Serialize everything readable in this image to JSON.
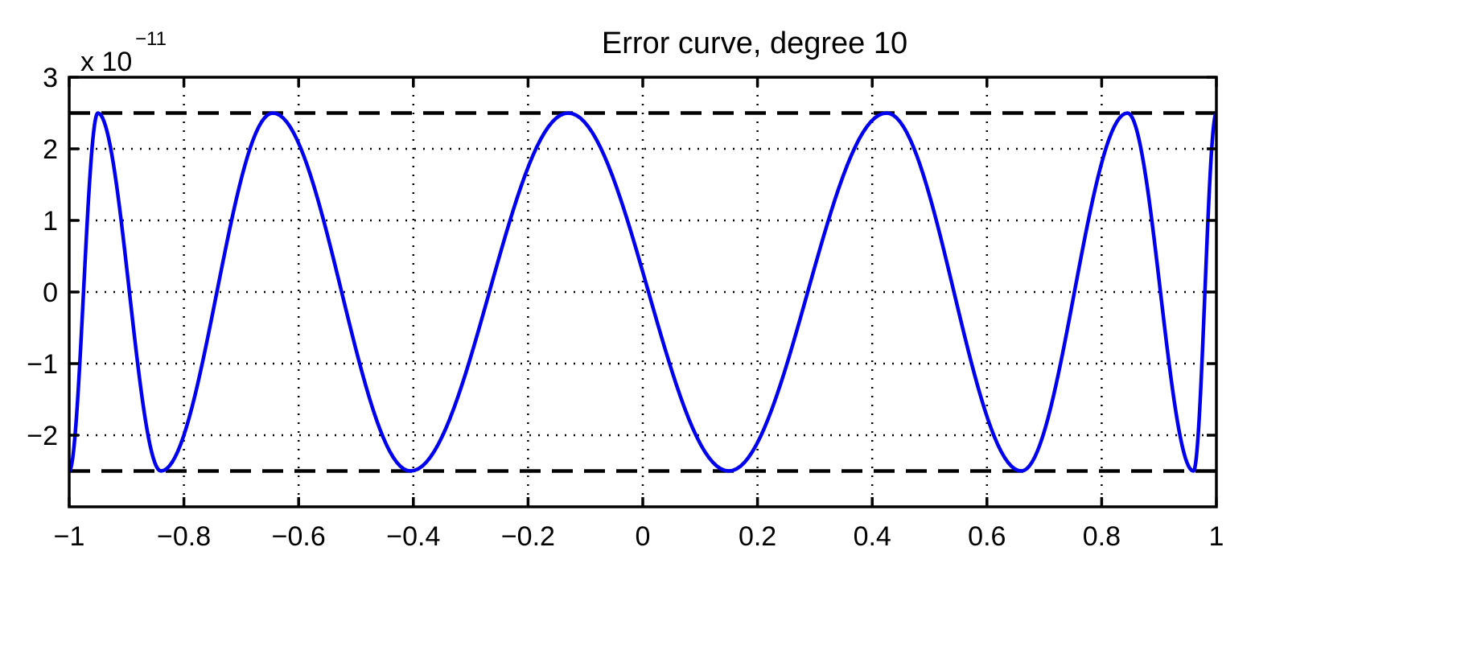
{
  "chart_data": {
    "type": "line",
    "title": "Error curve, degree 10",
    "xlabel": "",
    "ylabel": "",
    "y_multiplier": {
      "base": "x 10",
      "exponent": "−11"
    },
    "xlim": [
      -1,
      1
    ],
    "ylim": [
      -3,
      3
    ],
    "grid": true,
    "x_ticks": [
      -1,
      -0.8,
      -0.6,
      -0.4,
      -0.2,
      0,
      0.2,
      0.4,
      0.6,
      0.8,
      1
    ],
    "x_tick_labels": [
      "−1",
      "−0.8",
      "−0.6",
      "−0.4",
      "−0.2",
      "0",
      "0.2",
      "0.4",
      "0.6",
      "0.8",
      "1"
    ],
    "y_ticks": [
      -2,
      -1,
      0,
      1,
      2,
      3
    ],
    "y_tick_labels": [
      "−2",
      "−1",
      "0",
      "1",
      "2",
      "3"
    ],
    "reference_lines": [
      2.5,
      -2.5
    ],
    "series": [
      {
        "color": "#0000ee",
        "style": "solid",
        "x": [
          -1.0,
          -0.95,
          -0.84,
          -0.645,
          -0.405,
          -0.13,
          0.15,
          0.425,
          0.66,
          0.845,
          0.96,
          1.0
        ],
        "y": [
          -2.5,
          2.5,
          -2.5,
          2.5,
          -2.5,
          2.5,
          -2.5,
          2.5,
          -2.5,
          2.5,
          -2.5,
          2.5
        ]
      }
    ],
    "colors": {
      "curve": "#0000ee",
      "reference": "#000000",
      "axes": "#000000",
      "grid": "#000000"
    }
  }
}
